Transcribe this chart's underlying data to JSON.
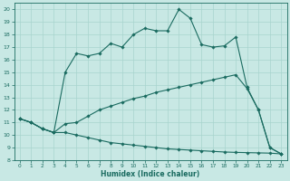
{
  "xlabel": "Humidex (Indice chaleur)",
  "bg_color": "#c8e8e4",
  "grid_color": "#a8d4ce",
  "line_color": "#1a6b60",
  "xlim": [
    -0.5,
    23.5
  ],
  "ylim": [
    8,
    20.5
  ],
  "xticks": [
    0,
    1,
    2,
    3,
    4,
    5,
    6,
    7,
    8,
    9,
    10,
    11,
    12,
    13,
    14,
    15,
    16,
    17,
    18,
    19,
    20,
    21,
    22,
    23
  ],
  "yticks": [
    8,
    9,
    10,
    11,
    12,
    13,
    14,
    15,
    16,
    17,
    18,
    19,
    20
  ],
  "line1_x": [
    0,
    1,
    2,
    3,
    4,
    5,
    6,
    7,
    8,
    9,
    10,
    11,
    12,
    13,
    14,
    15,
    16,
    17,
    18,
    19,
    20,
    21,
    22,
    23
  ],
  "line1_y": [
    11.3,
    11.0,
    10.5,
    10.2,
    15.0,
    16.5,
    16.3,
    16.5,
    17.3,
    17.0,
    18.0,
    18.5,
    18.3,
    18.3,
    20.0,
    19.3,
    17.2,
    17.0,
    17.1,
    17.8,
    13.8,
    12.0,
    9.0,
    8.5
  ],
  "line1_markers_x": [
    0,
    1,
    2,
    3,
    4,
    5,
    6,
    7,
    8,
    9,
    10,
    11,
    12,
    13,
    14,
    15,
    16,
    17,
    18,
    19,
    20,
    21,
    22,
    23
  ],
  "line1_markers_y": [
    11.3,
    11.0,
    10.5,
    10.2,
    15.0,
    16.5,
    16.3,
    16.5,
    17.3,
    17.0,
    18.0,
    18.5,
    18.3,
    18.3,
    20.0,
    19.3,
    17.2,
    17.0,
    17.1,
    17.8,
    13.8,
    12.0,
    9.0,
    8.5
  ],
  "line2_x": [
    0,
    1,
    2,
    3,
    4,
    5,
    6,
    7,
    8,
    9,
    10,
    11,
    12,
    13,
    14,
    15,
    16,
    17,
    18,
    19,
    20,
    21,
    22,
    23
  ],
  "line2_y": [
    11.3,
    11.0,
    10.5,
    10.2,
    10.9,
    11.0,
    11.5,
    12.0,
    12.3,
    12.6,
    12.9,
    13.1,
    13.4,
    13.6,
    13.8,
    14.0,
    14.2,
    14.4,
    14.6,
    14.8,
    13.7,
    12.0,
    9.0,
    8.5
  ],
  "line3_x": [
    0,
    1,
    2,
    3,
    4,
    5,
    6,
    7,
    8,
    9,
    10,
    11,
    12,
    13,
    14,
    15,
    16,
    17,
    18,
    19,
    20,
    21,
    22,
    23
  ],
  "line3_y": [
    11.3,
    11.0,
    10.5,
    10.2,
    10.2,
    10.0,
    9.8,
    9.6,
    9.4,
    9.3,
    9.2,
    9.1,
    9.0,
    8.9,
    8.85,
    8.8,
    8.75,
    8.7,
    8.65,
    8.62,
    8.6,
    8.58,
    8.56,
    8.5
  ]
}
